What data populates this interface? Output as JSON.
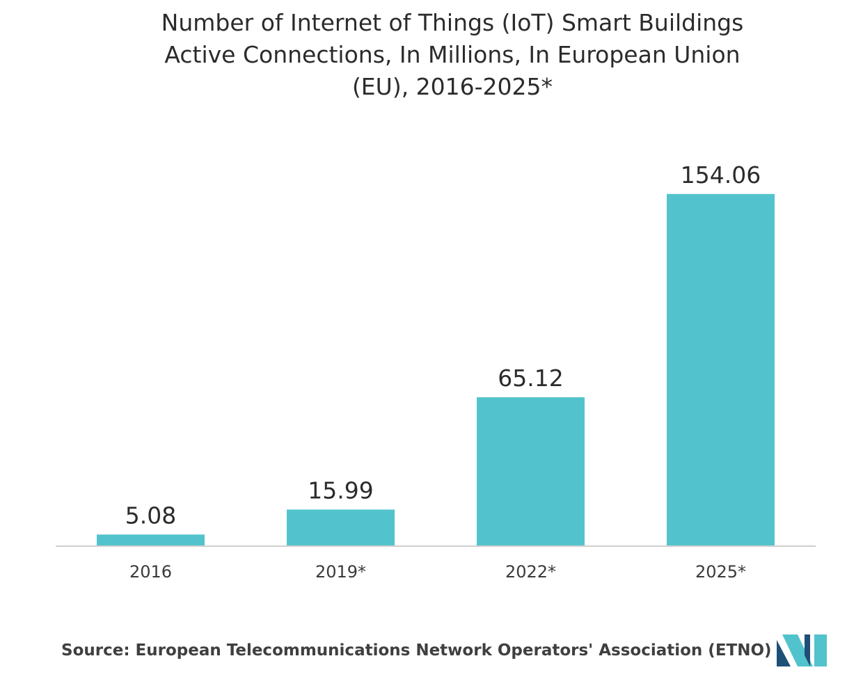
{
  "chart_data": {
    "type": "bar",
    "title_lines": [
      "Number of Internet of Things (IoT) Smart Buildings",
      "Active Connections, In Millions, In European Union",
      "(EU), 2016-2025*"
    ],
    "categories": [
      "2016",
      "2019*",
      "2022*",
      "2025*"
    ],
    "values": [
      5.08,
      15.99,
      65.12,
      154.06
    ],
    "value_labels": [
      "5.08",
      "15.99",
      "65.12",
      "154.06"
    ],
    "xlabel": "",
    "ylabel": "",
    "ylim": [
      0,
      175
    ],
    "grid": false,
    "legend": "none",
    "bar_color": "#52c3cc"
  },
  "source": "Source: European Telecommunications Network Operators' Association (ETNO)",
  "logo_icon": "mordor-intelligence-logo-icon",
  "colors": {
    "bar": "#52c3cc",
    "axis": "#cfcfcf",
    "logo_dark": "#1d4f77",
    "logo_light": "#52c3cc"
  }
}
